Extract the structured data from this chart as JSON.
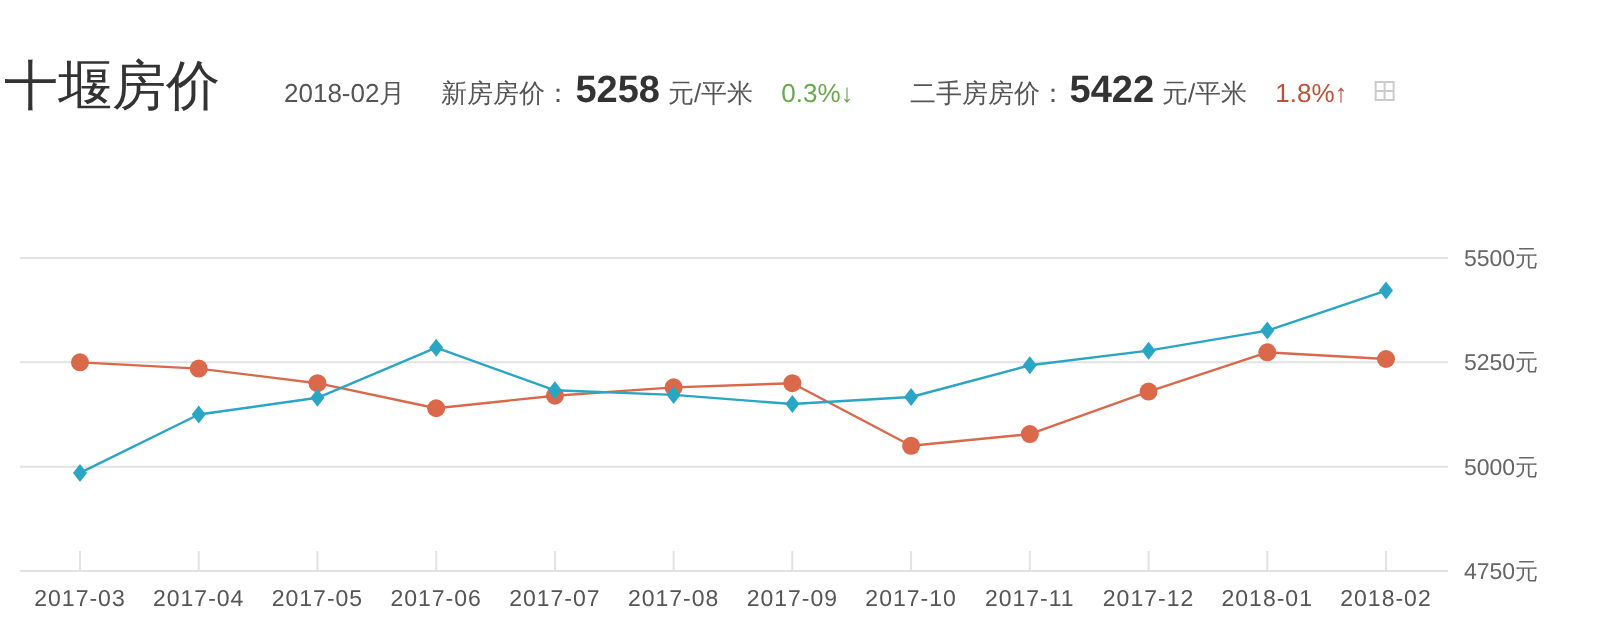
{
  "chart_data": {
    "type": "line",
    "title": "十堰房价",
    "annotations": [
      "2018-02月",
      "新房房价：",
      "5258",
      "元/平米",
      "0.3%↓",
      "二手房房价：",
      "5422",
      "元/平米",
      "1.8%↑"
    ],
    "categories": [
      "2017-03",
      "2017-04",
      "2017-05",
      "2017-06",
      "2017-07",
      "2017-08",
      "2017-09",
      "2017-10",
      "2017-11",
      "2017-12",
      "2018-01",
      "2018-02"
    ],
    "series": [
      {
        "color": "#d9694a",
        "marker": "circle",
        "values": [
          5250,
          5235,
          5200,
          5140,
          5170,
          5190,
          5200,
          5050,
          5078,
          5180,
          5274,
          5258
        ]
      },
      {
        "color": "#2ba5c4",
        "marker": "diamond",
        "values": [
          4985,
          5125,
          5165,
          5285,
          5183,
          5172,
          5150,
          5167,
          5243,
          5278,
          5326,
          5422
        ]
      }
    ],
    "ylim": [
      4750,
      5500
    ],
    "yticks": [
      {
        "value": 4750,
        "label": "4750元"
      },
      {
        "value": 5000,
        "label": "5000元"
      },
      {
        "value": 5250,
        "label": "5250元"
      },
      {
        "value": 5500,
        "label": "5500元"
      }
    ],
    "grid": "y"
  }
}
